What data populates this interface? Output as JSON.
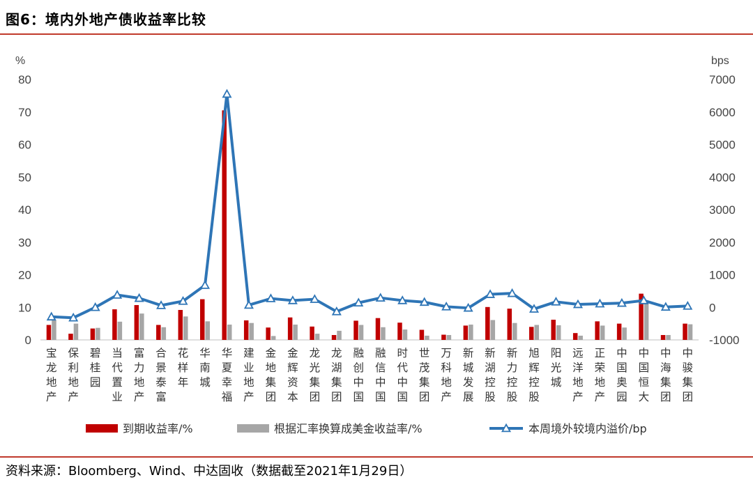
{
  "title": "图6：境内外地产债收益率比较",
  "source": "资料来源：Bloomberg、Wind、中达固收（数据截至2021年1月29日）",
  "chart_data": {
    "type": "bar",
    "left_unit": "%",
    "right_unit": "bps",
    "ylim_left": [
      0,
      80
    ],
    "ylim_right": [
      -1000,
      7000
    ],
    "yticks_left": [
      "0",
      "10",
      "20",
      "30",
      "40",
      "50",
      "60",
      "70",
      "80"
    ],
    "yticks_right": [
      "-1000",
      "0",
      "1000",
      "2000",
      "3000",
      "4000",
      "5000",
      "6000",
      "7000"
    ],
    "categories": [
      "宝龙地产",
      "保利地产",
      "碧桂园",
      "当代置业",
      "富力地产",
      "合景泰富",
      "花样年",
      "华南城",
      "华夏幸福",
      "建业地产",
      "金地集团",
      "金辉资本",
      "龙光集团",
      "龙湖集团",
      "融创中国",
      "融信中国",
      "时代中国",
      "世茂集团",
      "万科地产",
      "新城发展",
      "新湖控股",
      "新力控股",
      "旭辉控股",
      "阳光城",
      "远洋地产",
      "正荣地产",
      "中国奥园",
      "中国恒大",
      "中海集团",
      "中骏集团"
    ],
    "series": [
      {
        "name": "到期收益率/%",
        "type": "bar",
        "axis": "left",
        "color": "#c00000",
        "values": [
          4.6,
          1.9,
          3.5,
          9.4,
          10.7,
          4.6,
          9.2,
          12.5,
          70.5,
          6.0,
          3.8,
          6.9,
          4.1,
          1.5,
          5.9,
          6.7,
          5.3,
          3.1,
          1.6,
          4.4,
          10.1,
          9.6,
          4.0,
          6.2,
          2.1,
          5.7,
          5.0,
          14.2,
          1.5,
          5.0
        ]
      },
      {
        "name": "根据汇率换算成美金收益率/%",
        "type": "bar",
        "axis": "left",
        "color": "#a6a6a6",
        "values": [
          6.0,
          5.0,
          3.7,
          5.6,
          8.1,
          3.9,
          7.2,
          5.7,
          4.7,
          5.2,
          1.2,
          4.7,
          1.9,
          2.8,
          4.6,
          3.9,
          3.2,
          1.3,
          1.5,
          4.7,
          6.1,
          5.2,
          4.6,
          4.5,
          1.3,
          4.4,
          3.8,
          11.5,
          1.5,
          4.8
        ]
      },
      {
        "name": "本周境外较境内溢价/bp",
        "type": "line",
        "axis": "right",
        "color": "#2e75b6",
        "values": [
          -290,
          -320,
          0,
          380,
          280,
          60,
          190,
          680,
          6550,
          70,
          270,
          210,
          250,
          -130,
          140,
          290,
          210,
          160,
          20,
          -20,
          400,
          430,
          -50,
          170,
          90,
          110,
          130,
          210,
          10,
          40
        ]
      }
    ],
    "legend_position": "bottom"
  }
}
